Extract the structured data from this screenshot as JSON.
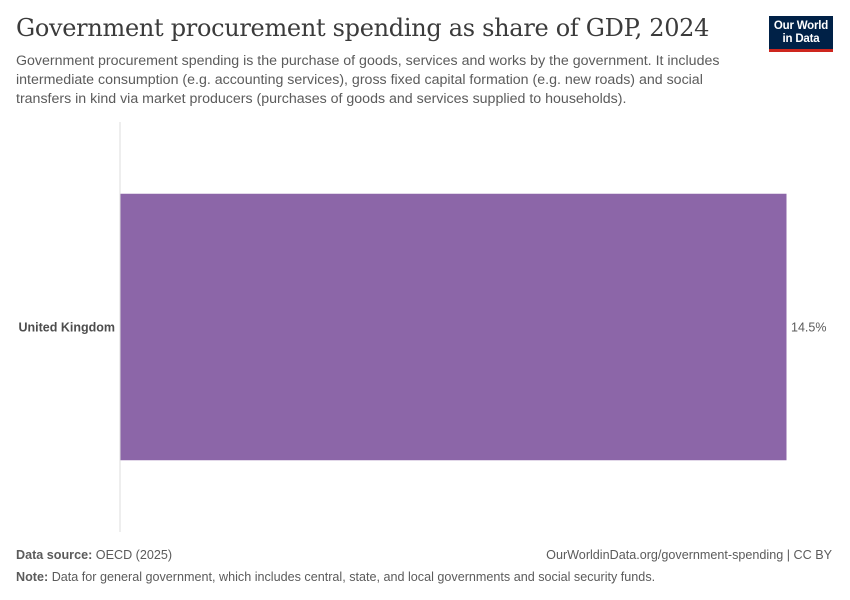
{
  "header": {
    "title": "Government procurement spending as share of GDP, 2024",
    "subtitle": "Government procurement spending is the purchase of goods, services and works by the government. It includes intermediate consumption (e.g. accounting services), gross fixed capital formation (e.g. new roads) and social transfers in kind via market producers (purchases of goods and services supplied to households).",
    "logo_line1": "Our World",
    "logo_line2": "in Data"
  },
  "footer": {
    "source_label": "Data source:",
    "source_text": "OECD (2025)",
    "url_text": "OurWorldinData.org/government-spending | CC BY",
    "note_label": "Note:",
    "note_text": "Data for general government, which includes central, state, and local governments and social security funds."
  },
  "colors": {
    "bar": "#8c66a8",
    "axis": "#dddddd",
    "logo_bg": "#002147",
    "logo_accent": "#ce261e"
  },
  "chart_data": {
    "type": "bar",
    "orientation": "horizontal",
    "title": "Government procurement spending as share of GDP, 2024",
    "categories": [
      "United Kingdom"
    ],
    "values": [
      14.5
    ],
    "value_labels": [
      "14.5%"
    ],
    "unit": "%",
    "xlim": [
      0,
      14.5
    ],
    "grid": false
  }
}
